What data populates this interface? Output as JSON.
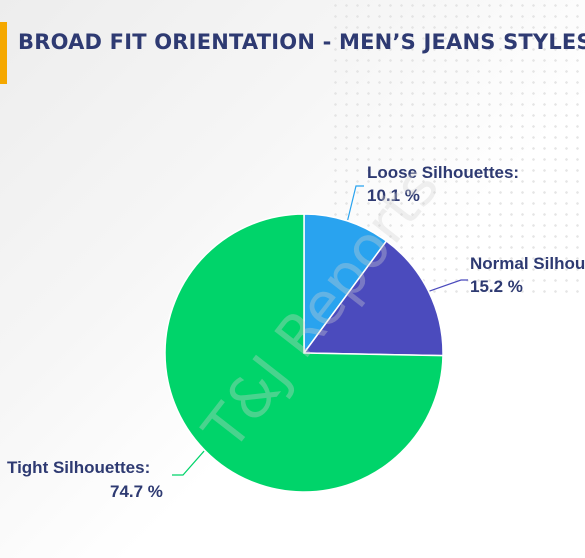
{
  "title": "BROAD FIT ORIENTATION - MEN’S JEANS STYLES",
  "watermark": "T&J Reports",
  "chart_data": {
    "type": "pie",
    "title": "BROAD FIT ORIENTATION - MEN’S JEANS STYLES",
    "slices": [
      {
        "label": "Loose Silhouettes:",
        "value": 10.1,
        "value_text": "10.1 %",
        "color": "#29a3ef"
      },
      {
        "label": "Normal Silhouettes:",
        "value": 15.2,
        "value_text": "15.2 %",
        "color": "#4b4bbd"
      },
      {
        "label": "Tight Silhouettes:",
        "value": 74.7,
        "value_text": "74.7 %",
        "color": "#00d46a"
      }
    ],
    "start_angle_deg": 0,
    "direction": "clockwise",
    "label_color": "#2e3a72"
  }
}
